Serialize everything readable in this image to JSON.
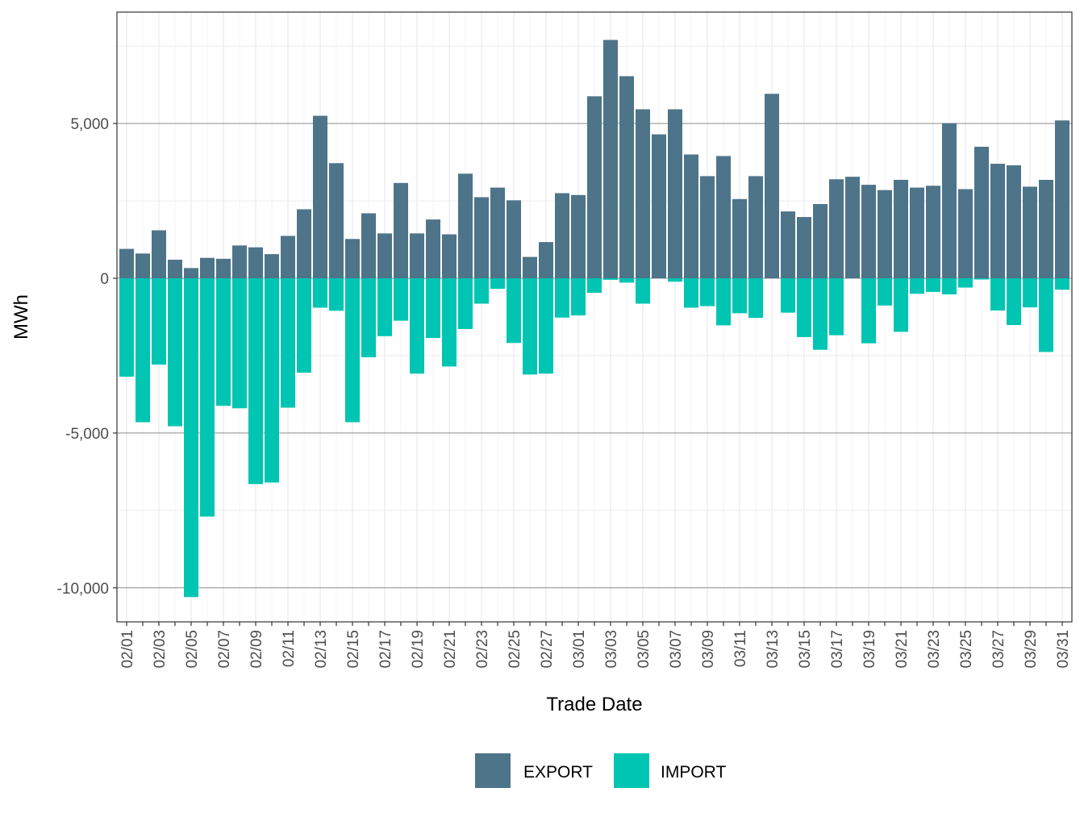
{
  "chart_data": {
    "type": "bar",
    "stacked": true,
    "title": "",
    "xlabel": "Trade Date",
    "ylabel": "MWh",
    "ylim": [
      -11100,
      8600
    ],
    "y_ticks": [
      -10000,
      -5000,
      0,
      5000
    ],
    "y_tick_labels": [
      "-10,000",
      "-5,000",
      "0",
      "5,000"
    ],
    "grid": true,
    "legend_position": "bottom",
    "x_tick_labels": [
      "02/01",
      "02/03",
      "02/05",
      "02/07",
      "02/09",
      "02/11",
      "02/13",
      "02/15",
      "02/17",
      "02/19",
      "02/21",
      "02/23",
      "02/25",
      "02/27",
      "03/01",
      "03/03",
      "03/05",
      "03/07",
      "03/09",
      "03/11",
      "03/13",
      "03/15",
      "03/17",
      "03/19",
      "03/21",
      "03/23",
      "03/25",
      "03/27",
      "03/29",
      "03/31"
    ],
    "categories": [
      "02/01",
      "02/02",
      "02/03",
      "02/04",
      "02/05",
      "02/06",
      "02/07",
      "02/08",
      "02/09",
      "02/10",
      "02/11",
      "02/12",
      "02/13",
      "02/14",
      "02/15",
      "02/16",
      "02/17",
      "02/18",
      "02/19",
      "02/20",
      "02/21",
      "02/22",
      "02/23",
      "02/24",
      "02/25",
      "02/26",
      "02/27",
      "02/28",
      "03/01",
      "03/02",
      "03/03",
      "03/04",
      "03/05",
      "03/06",
      "03/07",
      "03/08",
      "03/09",
      "03/10",
      "03/11",
      "03/12",
      "03/13",
      "03/14",
      "03/15",
      "03/16",
      "03/17",
      "03/18",
      "03/19",
      "03/20",
      "03/21",
      "03/22",
      "03/23",
      "03/24",
      "03/25",
      "03/26",
      "03/27",
      "03/28",
      "03/29",
      "03/30",
      "03/31"
    ],
    "series": [
      {
        "name": "EXPORT",
        "color": "#4e7489",
        "values": [
          950,
          800,
          1550,
          600,
          330,
          660,
          630,
          1060,
          1000,
          780,
          1370,
          2230,
          5250,
          3720,
          1270,
          2100,
          1450,
          3080,
          1450,
          1900,
          1420,
          3380,
          2620,
          2930,
          2520,
          690,
          1170,
          2750,
          2690,
          5880,
          7700,
          6530,
          5460,
          4650,
          5460,
          4000,
          3300,
          3950,
          2560,
          3300,
          5960,
          2160,
          1980,
          2400,
          3200,
          3280,
          3020,
          2850,
          3180,
          2930,
          2990,
          5010,
          2880,
          4250,
          3700,
          3650,
          2960,
          3180,
          5100
        ]
      },
      {
        "name": "IMPORT",
        "color": "#00c5b2",
        "values": [
          -3180,
          -4650,
          -2790,
          -4780,
          -10300,
          -7700,
          -4120,
          -4200,
          -6650,
          -6600,
          -4180,
          -3050,
          -950,
          -1050,
          -4650,
          -2550,
          -1870,
          -1370,
          -3080,
          -1930,
          -2850,
          -1640,
          -820,
          -340,
          -2090,
          -3110,
          -3080,
          -1270,
          -1200,
          -470,
          -50,
          -140,
          -820,
          0,
          -110,
          -950,
          -900,
          -1520,
          -1130,
          -1280,
          0,
          -1110,
          -1900,
          -2310,
          -1840,
          0,
          -2100,
          -880,
          -1730,
          -500,
          -440,
          -520,
          -300,
          -40,
          -1040,
          -1510,
          -940,
          -2380,
          -370
        ]
      }
    ]
  }
}
